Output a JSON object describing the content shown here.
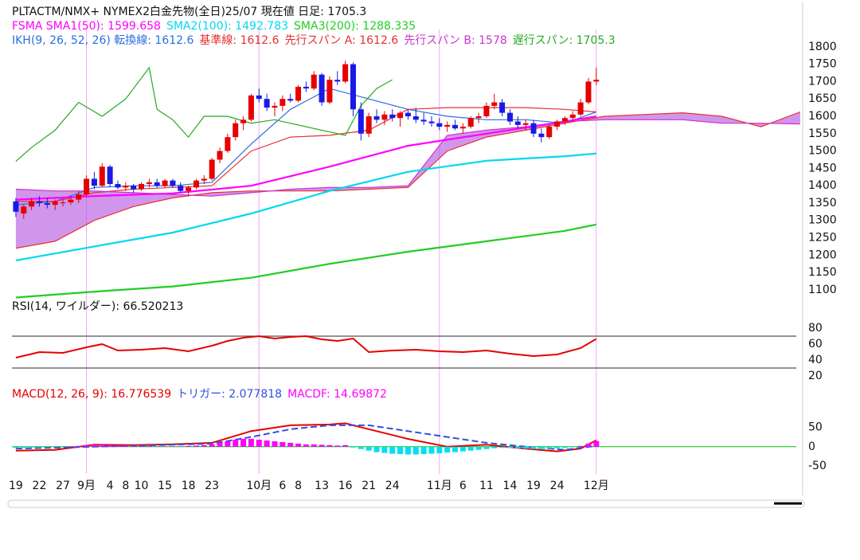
{
  "chart_data": [
    {
      "type": "candlestick",
      "title": "PLTACTM/NMX+ NYMEX2白金先物(全日)25/07 現在値 日足: 1705.3",
      "x": [
        0,
        1,
        2,
        3,
        4,
        5,
        6,
        7,
        8,
        9,
        10,
        11,
        12,
        13,
        14,
        15,
        16,
        17,
        18,
        19,
        20,
        21,
        22,
        23,
        24,
        25,
        26,
        27,
        28,
        29,
        30,
        31,
        32,
        33,
        34,
        35,
        36,
        37,
        38,
        39,
        40,
        41,
        42,
        43,
        44,
        45,
        46,
        47,
        48,
        49,
        50,
        51,
        52,
        53,
        54,
        55,
        56,
        57,
        58,
        59,
        60,
        61,
        62,
        63,
        64,
        65,
        66,
        67,
        68,
        69,
        70,
        71,
        72,
        73,
        74
      ],
      "open": [
        1355,
        1320,
        1340,
        1355,
        1350,
        1345,
        1350,
        1352,
        1360,
        1375,
        1420,
        1400,
        1455,
        1405,
        1395,
        1400,
        1390,
        1405,
        1410,
        1400,
        1415,
        1400,
        1385,
        1395,
        1415,
        1420,
        1475,
        1500,
        1540,
        1580,
        1590,
        1660,
        1650,
        1625,
        1630,
        1650,
        1645,
        1685,
        1680,
        1720,
        1640,
        1705,
        1700,
        1750,
        1620,
        1550,
        1600,
        1590,
        1605,
        1595,
        1610,
        1600,
        1590,
        1585,
        1580,
        1570,
        1575,
        1565,
        1570,
        1595,
        1600,
        1630,
        1640,
        1610,
        1585,
        1575,
        1580,
        1550,
        1540,
        1570,
        1585,
        1595,
        1605,
        1640,
        1700
      ],
      "high": [
        1365,
        1345,
        1365,
        1370,
        1365,
        1360,
        1360,
        1370,
        1385,
        1430,
        1440,
        1465,
        1460,
        1415,
        1410,
        1405,
        1410,
        1420,
        1420,
        1420,
        1420,
        1410,
        1400,
        1420,
        1430,
        1480,
        1510,
        1550,
        1590,
        1600,
        1665,
        1680,
        1665,
        1640,
        1660,
        1665,
        1690,
        1700,
        1730,
        1725,
        1715,
        1730,
        1760,
        1755,
        1640,
        1610,
        1620,
        1615,
        1620,
        1615,
        1620,
        1625,
        1610,
        1600,
        1595,
        1585,
        1590,
        1580,
        1600,
        1610,
        1640,
        1665,
        1650,
        1620,
        1600,
        1590,
        1590,
        1565,
        1575,
        1590,
        1600,
        1615,
        1650,
        1710,
        1740
      ],
      "low": [
        1310,
        1305,
        1330,
        1340,
        1335,
        1330,
        1340,
        1345,
        1350,
        1370,
        1390,
        1395,
        1395,
        1390,
        1385,
        1380,
        1385,
        1395,
        1395,
        1395,
        1395,
        1380,
        1370,
        1390,
        1405,
        1415,
        1465,
        1495,
        1530,
        1560,
        1585,
        1640,
        1615,
        1600,
        1615,
        1640,
        1640,
        1670,
        1675,
        1630,
        1635,
        1690,
        1695,
        1600,
        1530,
        1540,
        1580,
        1575,
        1585,
        1570,
        1590,
        1580,
        1575,
        1570,
        1560,
        1555,
        1560,
        1550,
        1565,
        1580,
        1595,
        1620,
        1600,
        1575,
        1565,
        1560,
        1540,
        1525,
        1535,
        1560,
        1575,
        1585,
        1600,
        1635,
        1690
      ],
      "close": [
        1325,
        1340,
        1355,
        1350,
        1345,
        1355,
        1352,
        1360,
        1375,
        1420,
        1400,
        1455,
        1405,
        1395,
        1400,
        1390,
        1405,
        1410,
        1400,
        1415,
        1400,
        1385,
        1395,
        1415,
        1420,
        1475,
        1500,
        1540,
        1580,
        1590,
        1660,
        1650,
        1625,
        1630,
        1650,
        1645,
        1685,
        1680,
        1720,
        1640,
        1705,
        1700,
        1750,
        1620,
        1550,
        1600,
        1590,
        1605,
        1595,
        1610,
        1600,
        1590,
        1585,
        1580,
        1570,
        1575,
        1565,
        1570,
        1595,
        1600,
        1630,
        1640,
        1610,
        1585,
        1575,
        1580,
        1550,
        1540,
        1570,
        1585,
        1595,
        1605,
        1640,
        1700,
        1705.3
      ],
      "up_color": "#e60000",
      "down_color": "#1a1ae6",
      "sma_series": [
        {
          "name": "FSMA SMA1(50): 1599.658",
          "color": "#ff00ff",
          "x": [
            0,
            10,
            20,
            30,
            40,
            50,
            60,
            70,
            74
          ],
          "values": [
            1360,
            1370,
            1378,
            1400,
            1455,
            1515,
            1550,
            1585,
            1599.658
          ]
        },
        {
          "name": "SMA2(100): 1492.783",
          "color": "#00d8f0",
          "x": [
            0,
            10,
            20,
            30,
            40,
            50,
            60,
            70,
            74
          ],
          "values": [
            1185,
            1225,
            1265,
            1320,
            1385,
            1440,
            1472,
            1485,
            1492.783
          ]
        },
        {
          "name": "SMA3(200): 1288.335",
          "color": "#22cc22",
          "x": [
            0,
            10,
            20,
            30,
            40,
            50,
            60,
            70,
            74
          ],
          "values": [
            1078,
            1095,
            1110,
            1135,
            1175,
            1210,
            1240,
            1270,
            1288.335
          ]
        }
      ],
      "ichimoku_series": [
        {
          "name": "IKH(9, 26, 52, 26) 転換線: 1612.6",
          "color": "#2a6fe0",
          "x": [
            0,
            5,
            10,
            15,
            20,
            25,
            30,
            35,
            40,
            45,
            50,
            55,
            60,
            65,
            70,
            74
          ],
          "values": [
            1345,
            1355,
            1395,
            1400,
            1400,
            1410,
            1520,
            1620,
            1680,
            1650,
            1620,
            1600,
            1590,
            1590,
            1580,
            1612.6
          ]
        },
        {
          "name": "基準線: 1612.6",
          "color": "#e83030",
          "x": [
            0,
            5,
            10,
            15,
            20,
            25,
            30,
            35,
            40,
            45,
            50,
            55,
            60,
            65,
            70,
            74
          ],
          "values": [
            1355,
            1355,
            1380,
            1390,
            1395,
            1400,
            1500,
            1540,
            1545,
            1560,
            1620,
            1625,
            1625,
            1625,
            1620,
            1612.6
          ]
        },
        {
          "name": "先行スパン A: 1612.6",
          "color": "#e83030",
          "x": [
            0,
            5,
            10,
            15,
            20,
            25,
            30,
            35,
            40,
            45,
            50,
            55,
            60,
            65,
            70,
            75,
            80,
            85,
            90,
            95,
            100
          ],
          "values": [
            1220,
            1240,
            1300,
            1340,
            1365,
            1380,
            1385,
            1385,
            1385,
            1390,
            1395,
            1500,
            1540,
            1560,
            1580,
            1600,
            1605,
            1610,
            1600,
            1570,
            1612.6
          ]
        },
        {
          "name": "先行スパン B: 1578",
          "color": "#cc33cc",
          "x": [
            0,
            5,
            10,
            15,
            20,
            25,
            30,
            35,
            40,
            45,
            50,
            55,
            60,
            65,
            70,
            75,
            80,
            85,
            90,
            95,
            100
          ],
          "values": [
            1390,
            1385,
            1385,
            1380,
            1375,
            1370,
            1380,
            1390,
            1395,
            1395,
            1400,
            1545,
            1560,
            1570,
            1585,
            1590,
            1590,
            1590,
            1580,
            1580,
            1578
          ]
        },
        {
          "name": "遅行スパン: 1705.3",
          "color": "#22aa22",
          "x": [
            0,
            2,
            5,
            8,
            11,
            14,
            17,
            18,
            20,
            22,
            24,
            27,
            30,
            33,
            36,
            39,
            42,
            44,
            46,
            48
          ],
          "values": [
            1470,
            1510,
            1560,
            1640,
            1600,
            1650,
            1740,
            1620,
            1590,
            1540,
            1600,
            1600,
            1580,
            1590,
            1575,
            1560,
            1545,
            1630,
            1680,
            1705.3
          ]
        }
      ],
      "cloud_color": "#b050e0",
      "xlim": [
        -0.5,
        99.5
      ],
      "ylim": [
        1070,
        1850
      ],
      "yticks": [
        1100,
        1150,
        1200,
        1250,
        1300,
        1350,
        1400,
        1450,
        1500,
        1550,
        1600,
        1650,
        1700,
        1750,
        1800
      ]
    },
    {
      "type": "line",
      "title": "RSI(14, ワイルダー): 66.520213",
      "series": [
        {
          "color": "#e60000",
          "x": [
            0,
            3,
            6,
            9,
            11,
            13,
            16,
            19,
            22,
            25,
            27,
            29,
            31,
            33,
            35,
            37,
            39,
            41,
            43,
            45,
            48,
            51,
            54,
            57,
            60,
            63,
            66,
            69,
            72,
            74
          ],
          "values": [
            43,
            50,
            49,
            56,
            60,
            52,
            53,
            55,
            51,
            58,
            64,
            68,
            70,
            67,
            69,
            70,
            66,
            64,
            67,
            50,
            52,
            53,
            51,
            50,
            52,
            48,
            45,
            47,
            55,
            66.520213
          ]
        }
      ],
      "reference_lines": [
        30,
        70
      ],
      "xlim": [
        -0.5,
        99.5
      ],
      "ylim": [
        12,
        88
      ],
      "yticks": [
        20,
        40,
        60,
        80
      ]
    },
    {
      "type": "line",
      "series": [
        {
          "name": "MACD(12, 26, 9): 16.776539",
          "color": "#e60000",
          "x": [
            0,
            5,
            10,
            15,
            20,
            25,
            30,
            35,
            40,
            42,
            45,
            50,
            55,
            60,
            65,
            69,
            72,
            74
          ],
          "values": [
            -10,
            -8,
            5,
            4,
            6,
            10,
            40,
            55,
            57,
            60,
            45,
            20,
            0,
            5,
            -5,
            -12,
            -5,
            16.776539
          ]
        },
        {
          "name": "トリガー: 2.077818",
          "color": "#3050e0",
          "dash": true,
          "x": [
            0,
            10,
            20,
            25,
            30,
            35,
            40,
            45,
            50,
            55,
            60,
            65,
            70,
            74
          ],
          "values": [
            -5,
            0,
            5,
            8,
            25,
            45,
            55,
            55,
            40,
            25,
            10,
            0,
            -8,
            2.077818
          ]
        },
        {
          "name": "MACDF: 14.69872",
          "color": "#ff00ff",
          "negative_color": "#00e0f0",
          "kind": "bar",
          "x": [
            0,
            1,
            2,
            3,
            4,
            5,
            6,
            7,
            8,
            9,
            10,
            11,
            12,
            13,
            14,
            15,
            16,
            17,
            18,
            19,
            20,
            21,
            22,
            23,
            24,
            25,
            26,
            27,
            28,
            29,
            30,
            31,
            32,
            33,
            34,
            35,
            36,
            37,
            38,
            39,
            40,
            41,
            42,
            43,
            44,
            45,
            46,
            47,
            48,
            49,
            50,
            51,
            52,
            53,
            54,
            55,
            56,
            57,
            58,
            59,
            60,
            61,
            62,
            63,
            64,
            65,
            66,
            67,
            68,
            69,
            70,
            71,
            72,
            73,
            74
          ],
          "values": [
            -3,
            -3,
            -2,
            -2,
            -1,
            -1,
            0,
            1,
            2,
            4,
            5,
            5,
            4,
            3,
            3,
            2,
            2,
            2,
            1,
            1,
            1,
            1,
            2,
            3,
            4,
            6,
            10,
            14,
            18,
            20,
            20,
            18,
            16,
            14,
            12,
            10,
            8,
            6,
            6,
            5,
            4,
            3,
            4,
            -2,
            -6,
            -10,
            -14,
            -16,
            -18,
            -19,
            -20,
            -20,
            -19,
            -18,
            -17,
            -15,
            -14,
            -12,
            -10,
            -8,
            -6,
            -4,
            -3,
            -3,
            -4,
            -5,
            -6,
            -6,
            -5,
            -4,
            -3,
            -1,
            2,
            8,
            14.69872
          ]
        }
      ],
      "zero_line_color": "#00c000",
      "xlim": [
        -0.5,
        99.5
      ],
      "ylim": [
        -70,
        110
      ],
      "yticks": [
        -50,
        0,
        50
      ],
      "xticks": [
        {
          "value": 0,
          "label": "19"
        },
        {
          "value": 3,
          "label": "22"
        },
        {
          "value": 6,
          "label": "27"
        },
        {
          "value": 9,
          "label": "9月",
          "color": "#b000d0"
        },
        {
          "value": 12,
          "label": "4"
        },
        {
          "value": 14,
          "label": "8"
        },
        {
          "value": 16,
          "label": "10"
        },
        {
          "value": 19,
          "label": "15"
        },
        {
          "value": 22,
          "label": "18"
        },
        {
          "value": 25,
          "label": "23"
        },
        {
          "value": 31,
          "label": "10月",
          "color": "#b000d0"
        },
        {
          "value": 34,
          "label": "6"
        },
        {
          "value": 36,
          "label": "8"
        },
        {
          "value": 39,
          "label": "13"
        },
        {
          "value": 42,
          "label": "16"
        },
        {
          "value": 45,
          "label": "21"
        },
        {
          "value": 48,
          "label": "24"
        },
        {
          "value": 54,
          "label": "11月",
          "color": "#b000d0"
        },
        {
          "value": 57,
          "label": "6"
        },
        {
          "value": 60,
          "label": "11"
        },
        {
          "value": 63,
          "label": "14"
        },
        {
          "value": 66,
          "label": "19"
        },
        {
          "value": 69,
          "label": "24"
        },
        {
          "value": 74,
          "label": "12月",
          "color": "#b000d0"
        }
      ]
    }
  ]
}
